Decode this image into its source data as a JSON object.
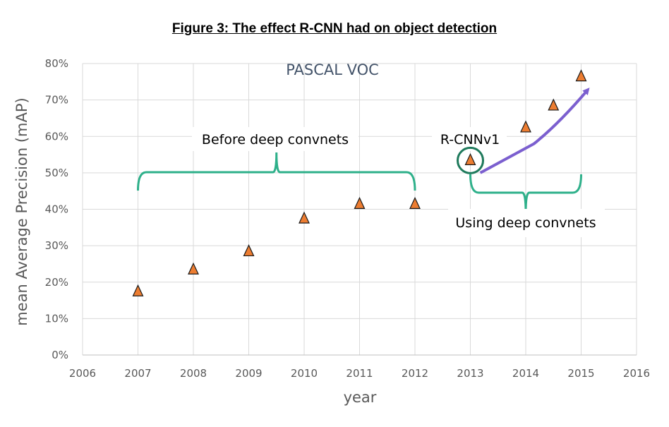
{
  "figure_title": "Figure 3: The effect R-CNN had on object detection",
  "chart_data": {
    "type": "scatter",
    "title": "PASCAL VOC",
    "xlabel": "year",
    "ylabel": "mean Average Precision (mAP)",
    "xlim": [
      2006,
      2016
    ],
    "ylim": [
      0,
      80
    ],
    "x_ticks": [
      "2006",
      "2007",
      "2008",
      "2009",
      "2010",
      "2011",
      "2012",
      "2013",
      "2014",
      "2015",
      "2016"
    ],
    "y_ticks": [
      "0%",
      "10%",
      "20%",
      "30%",
      "40%",
      "50%",
      "60%",
      "70%",
      "80%"
    ],
    "grid": true,
    "series": [
      {
        "marker": "triangle",
        "color": "#ed7d31",
        "x": [
          2007,
          2008,
          2009,
          2010,
          2011,
          2012,
          2013,
          2014,
          2014.5,
          2015
        ],
        "y": [
          17,
          23,
          28,
          37,
          41,
          41,
          53,
          62,
          68,
          76
        ]
      }
    ],
    "annotations": [
      {
        "text": "Before deep convnets",
        "color": "#2eb08a"
      },
      {
        "text": "R-CNNv1",
        "color": "#1f7a5c"
      },
      {
        "text": "Using deep convnets",
        "color": "#2eb08a"
      },
      {
        "text": "",
        "color": "#7b5fcf"
      }
    ]
  }
}
